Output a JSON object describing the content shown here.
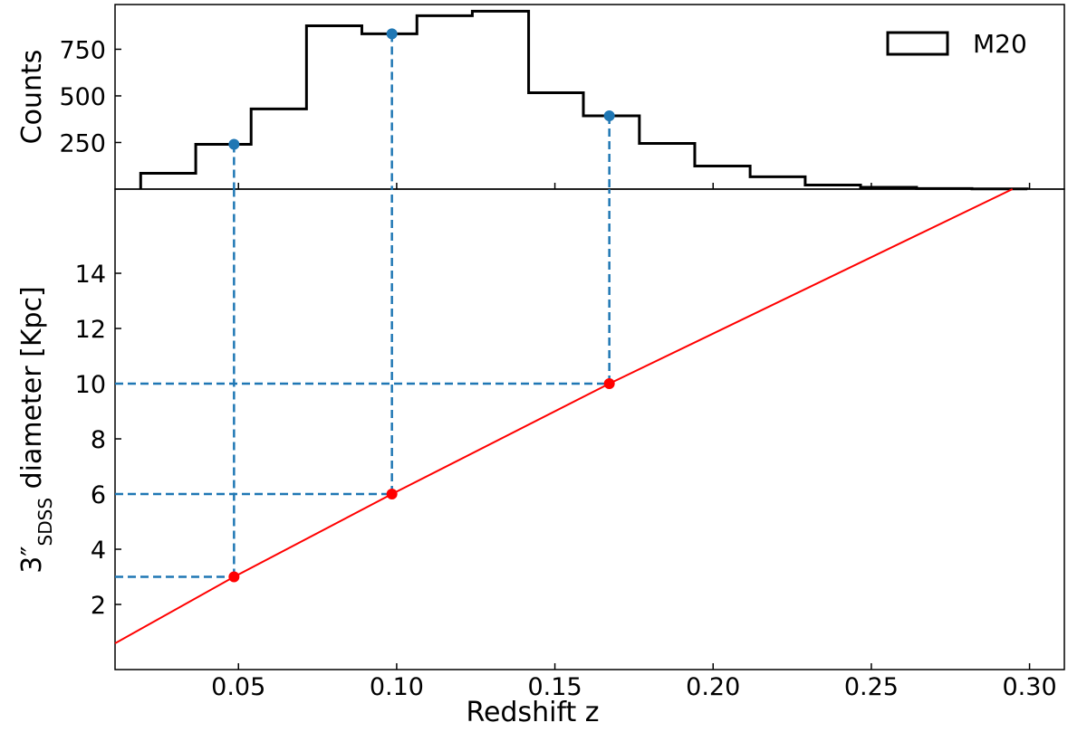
{
  "chart_data": [
    {
      "type": "histogram",
      "ylabel": "Counts",
      "bins": [
        0.0191,
        0.0365,
        0.054,
        0.0715,
        0.089,
        0.1064,
        0.1239,
        0.1417,
        0.159,
        0.1767,
        0.1942,
        0.2117,
        0.2291,
        0.2466,
        0.2643,
        0.2818,
        0.2993
      ],
      "counts": [
        85,
        240,
        430,
        876,
        833,
        930,
        954,
        517,
        393,
        245,
        124,
        66,
        22,
        10,
        3,
        1
      ],
      "name": "M20",
      "color": "#000000",
      "legend": "upper right",
      "points": {
        "x": [
          0.0486,
          0.0985,
          0.1672
        ],
        "values": [
          240,
          833,
          393
        ],
        "color": "#1f77b4"
      },
      "xlim": [
        0.011,
        0.311
      ],
      "xticks": [
        0.05,
        0.1,
        0.15,
        0.2,
        0.25,
        0.3
      ],
      "ylim": [
        0,
        990
      ],
      "yticks": [
        250,
        500,
        750
      ]
    },
    {
      "type": "line",
      "xlabel": "Redshift z",
      "ylabel": [
        "3″",
        "SDSS",
        " diameter [Kpc]"
      ],
      "line": {
        "x": [
          0.011,
          0.0486,
          0.0985,
          0.1672,
          0.2946
        ],
        "values": [
          0.59,
          3,
          6,
          10,
          17.05
        ],
        "color": "#ff0000"
      },
      "points": {
        "x": [
          0.0486,
          0.0985,
          0.1672
        ],
        "values": [
          3,
          6,
          10
        ],
        "color": "#ff0000"
      },
      "guides": {
        "color": "#1f77b4",
        "style": "dashed"
      },
      "xlim": [
        0.011,
        0.311
      ],
      "xticks": [
        {
          "value": 0.05,
          "label": "0.05"
        },
        {
          "value": 0.1,
          "label": "0.10"
        },
        {
          "value": 0.15,
          "label": "0.15"
        },
        {
          "value": 0.2,
          "label": "0.20"
        },
        {
          "value": 0.25,
          "label": "0.25"
        },
        {
          "value": 0.3,
          "label": "0.30"
        }
      ],
      "ylim": [
        -0.36,
        17.05
      ],
      "yticks": [
        2,
        4,
        6,
        8,
        10,
        12,
        14
      ]
    }
  ]
}
